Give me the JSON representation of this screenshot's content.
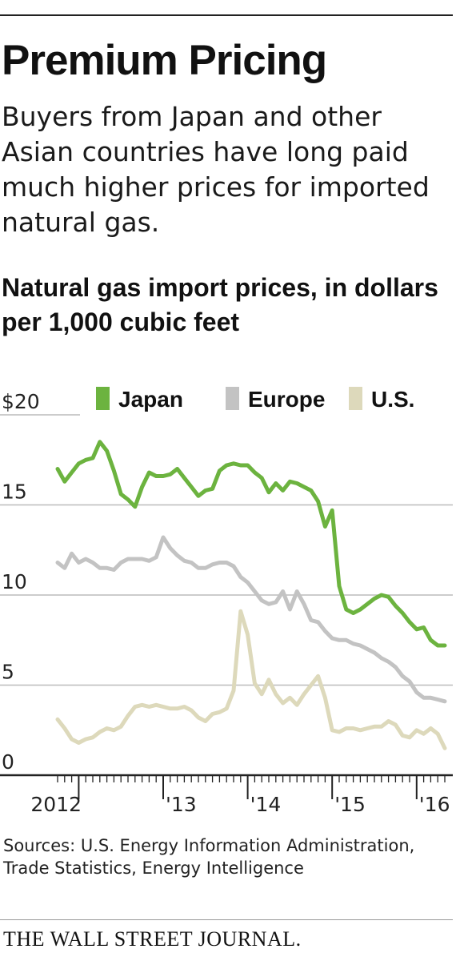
{
  "headline": "Premium Pricing",
  "dek": "Buyers from Japan and other Asian countries have long paid much higher prices for imported natural gas.",
  "source": "Sources: U.S. Energy Information Administration, Trade Statistics, Energy Intelligence",
  "masthead": "THE WALL STREET JOURNAL.",
  "colors": {
    "japan": "#6cb33f",
    "europe": "#c3c3c3",
    "us": "#ddd9bb",
    "grid": "#bbbbbb",
    "axis": "#222222"
  },
  "chart_data": {
    "type": "line",
    "title": "Natural gas import prices, in dollars per 1,000 cubic feet",
    "ylim": [
      0,
      20
    ],
    "y_ticks": [
      {
        "value": 20,
        "label": "$20"
      },
      {
        "value": 15,
        "label": "15"
      },
      {
        "value": 10,
        "label": "10"
      },
      {
        "value": 5,
        "label": "5"
      },
      {
        "value": 0,
        "label": "0"
      }
    ],
    "x_range": [
      "2011-10",
      "2016-05"
    ],
    "x_tick_labels": [
      {
        "x": "2012-01",
        "label": "2012"
      },
      {
        "x": "2013-01",
        "label": "'13"
      },
      {
        "x": "2014-01",
        "label": "'14"
      },
      {
        "x": "2015-01",
        "label": "'15"
      },
      {
        "x": "2016-01",
        "label": "'16"
      }
    ],
    "x": [
      "2011-10",
      "2011-11",
      "2011-12",
      "2012-01",
      "2012-02",
      "2012-03",
      "2012-04",
      "2012-05",
      "2012-06",
      "2012-07",
      "2012-08",
      "2012-09",
      "2012-10",
      "2012-11",
      "2012-12",
      "2013-01",
      "2013-02",
      "2013-03",
      "2013-04",
      "2013-05",
      "2013-06",
      "2013-07",
      "2013-08",
      "2013-09",
      "2013-10",
      "2013-11",
      "2013-12",
      "2014-01",
      "2014-02",
      "2014-03",
      "2014-04",
      "2014-05",
      "2014-06",
      "2014-07",
      "2014-08",
      "2014-09",
      "2014-10",
      "2014-11",
      "2014-12",
      "2015-01",
      "2015-02",
      "2015-03",
      "2015-04",
      "2015-05",
      "2015-06",
      "2015-07",
      "2015-08",
      "2015-09",
      "2015-10",
      "2015-11",
      "2015-12",
      "2016-01",
      "2016-02",
      "2016-03",
      "2016-04",
      "2016-05"
    ],
    "legend_position": "top",
    "grid": "horizontal",
    "series": [
      {
        "name": "Japan",
        "color": "#6cb33f",
        "values": [
          17.0,
          16.3,
          16.8,
          17.3,
          17.5,
          17.6,
          18.5,
          18.0,
          16.9,
          15.6,
          15.3,
          14.9,
          16.0,
          16.8,
          16.6,
          16.6,
          16.7,
          17.0,
          16.5,
          16.0,
          15.5,
          15.8,
          15.9,
          16.9,
          17.2,
          17.3,
          17.2,
          17.2,
          16.8,
          16.5,
          15.7,
          16.2,
          15.8,
          16.3,
          16.2,
          16.0,
          15.8,
          15.2,
          13.8,
          14.7,
          10.5,
          9.2,
          9.0,
          9.2,
          9.5,
          9.8,
          10.0,
          9.9,
          9.4,
          9.0,
          8.5,
          8.1,
          8.2,
          7.5,
          7.2,
          7.2
        ]
      },
      {
        "name": "Europe",
        "color": "#c3c3c3",
        "values": [
          11.8,
          11.5,
          12.3,
          11.8,
          12.0,
          11.8,
          11.5,
          11.5,
          11.4,
          11.8,
          12.0,
          12.0,
          12.0,
          11.9,
          12.1,
          13.2,
          12.6,
          12.2,
          11.9,
          11.8,
          11.5,
          11.5,
          11.7,
          11.8,
          11.8,
          11.6,
          11.0,
          10.7,
          10.2,
          9.7,
          9.5,
          9.6,
          10.2,
          9.2,
          10.2,
          9.5,
          8.6,
          8.5,
          8.0,
          7.6,
          7.5,
          7.5,
          7.3,
          7.2,
          7.0,
          6.8,
          6.5,
          6.3,
          6.0,
          5.5,
          5.2,
          4.6,
          4.3,
          4.3,
          4.2,
          4.1
        ]
      },
      {
        "name": "U.S.",
        "color": "#ddd9bb",
        "values": [
          3.1,
          2.6,
          2.0,
          1.8,
          2.0,
          2.1,
          2.4,
          2.6,
          2.5,
          2.7,
          3.3,
          3.8,
          3.9,
          3.8,
          3.9,
          3.8,
          3.7,
          3.7,
          3.8,
          3.6,
          3.2,
          3.0,
          3.4,
          3.5,
          3.7,
          4.7,
          9.1,
          7.8,
          5.1,
          4.5,
          5.3,
          4.5,
          4.0,
          4.3,
          3.9,
          4.5,
          5.0,
          5.5,
          4.3,
          2.5,
          2.4,
          2.6,
          2.6,
          2.5,
          2.6,
          2.7,
          2.7,
          3.0,
          2.8,
          2.2,
          2.1,
          2.5,
          2.3,
          2.6,
          2.3,
          1.5
        ]
      }
    ]
  }
}
